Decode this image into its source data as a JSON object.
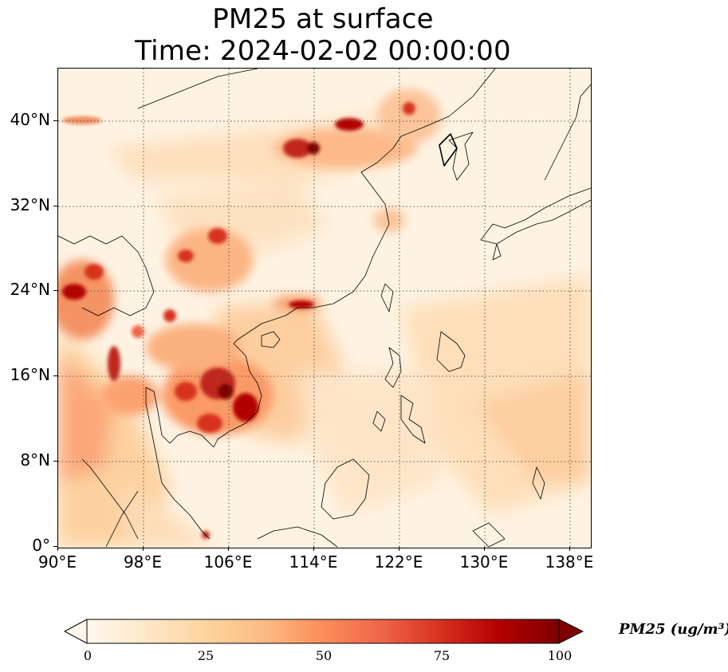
{
  "title": {
    "line1": "PM25 at surface",
    "line2": "Time: 2024-02-02 00:00:00"
  },
  "map": {
    "region": "East and Southeast Asia",
    "lon_range": [
      90,
      140
    ],
    "lat_range": [
      0,
      45
    ],
    "gridlines": "dotted",
    "x_ticks": [
      "90°E",
      "98°E",
      "106°E",
      "114°E",
      "122°E",
      "130°E",
      "138°E"
    ],
    "y_ticks": [
      "40°N",
      "32°N",
      "24°N",
      "16°N",
      "8°N",
      "0°"
    ],
    "hotspots": [
      "Laos / Cambodia / Vietnam interior",
      "Myanmar - Yunnan border",
      "North China Plain",
      "Sichuan Basin",
      "Guangdong coast"
    ]
  },
  "colorbar": {
    "variable": "PM25",
    "unit_label": "PM25 (ug/m³)",
    "ticks": [
      "0",
      "25",
      "50",
      "75",
      "100"
    ],
    "range": [
      0,
      100
    ],
    "extend": "both",
    "colormap": "OrRd",
    "colors": [
      "#fff7ec",
      "#fee8c8",
      "#fdd49e",
      "#fdbb84",
      "#fc8d59",
      "#ef6548",
      "#d7301f",
      "#b30000",
      "#7f0000"
    ]
  }
}
